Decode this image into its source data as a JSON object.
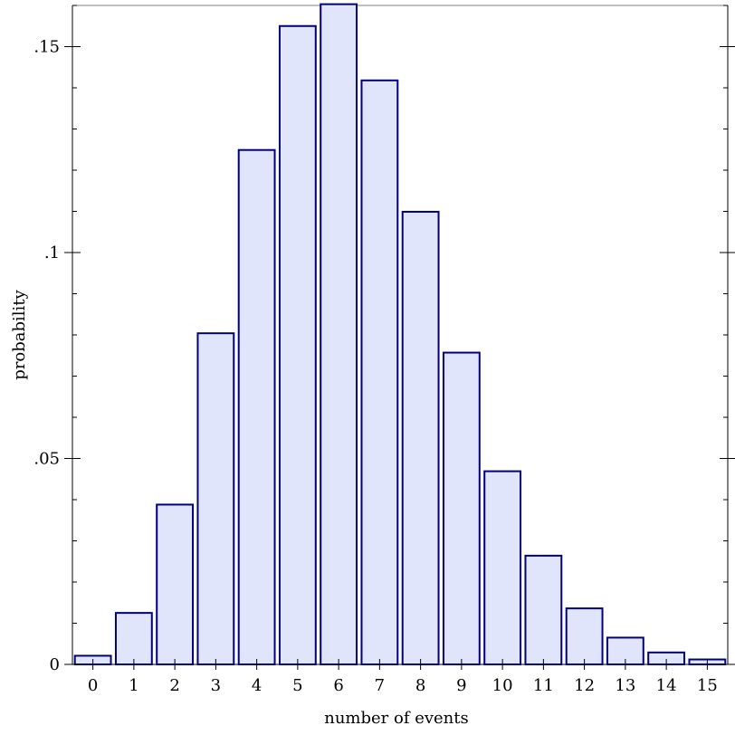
{
  "chart_data": {
    "type": "bar",
    "title": "",
    "xlabel": "number of events",
    "ylabel": "probability",
    "categories": [
      "0",
      "1",
      "2",
      "3",
      "4",
      "5",
      "6",
      "7",
      "8",
      "9",
      "10",
      "11",
      "12",
      "13",
      "14",
      "15"
    ],
    "values": [
      0.0021,
      0.0125,
      0.0388,
      0.0804,
      0.1249,
      0.155,
      0.1603,
      0.1418,
      0.1099,
      0.0757,
      0.0469,
      0.0264,
      0.0136,
      0.0065,
      0.0029,
      0.0012
    ],
    "ylim": [
      0,
      0.16
    ],
    "y_ticks": [
      0,
      0.05,
      0.1,
      0.15
    ],
    "y_tick_labels": [
      "0",
      ".05",
      ".1",
      ".15"
    ],
    "grid": false,
    "legend": "none",
    "colors": {
      "bar_fill": "#e0e5fc",
      "bar_stroke": "#00007f"
    }
  }
}
